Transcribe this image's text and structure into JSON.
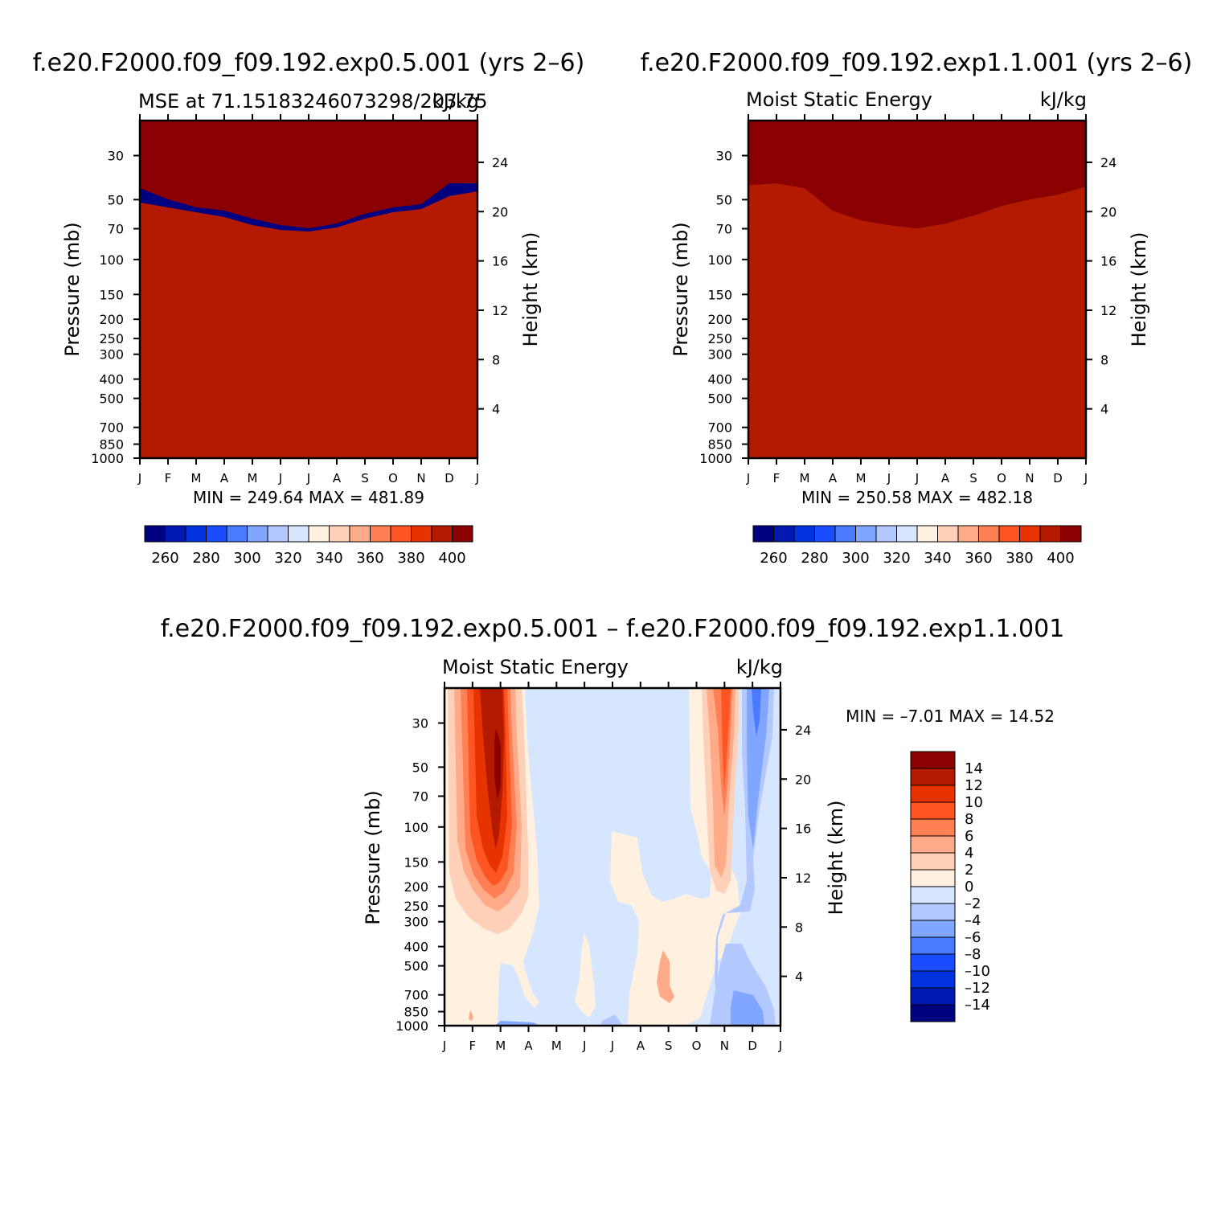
{
  "chart_data": [
    {
      "type": "heatmap",
      "title": "f.e20.F2000.f09_f09.192.exp0.5.001 (yrs 2–6)",
      "subtitle_left": "MSE at 71.15183246073298/203.75",
      "subtitle_right": "kJ/kg",
      "ylabel": "Pressure (mb)",
      "ylabel_right": "Height (km)",
      "x_ticks": [
        "J",
        "F",
        "M",
        "A",
        "M",
        "J",
        "J",
        "A",
        "S",
        "O",
        "N",
        "D",
        "J"
      ],
      "y_ticks": [
        "30",
        "50",
        "70",
        "100",
        "150",
        "200",
        "250",
        "300",
        "400",
        "500",
        "700",
        "850",
        "1000"
      ],
      "y_ticks_right": [
        "24",
        "20",
        "16",
        "12",
        "8",
        "4"
      ],
      "stats": "MIN =  249.64  MAX =  481.89",
      "min": 249.64,
      "max": 481.89,
      "colorbar_labels": [
        "260",
        "280",
        "300",
        "320",
        "340",
        "360",
        "380",
        "400"
      ],
      "colorbar_colors": [
        "#00037f",
        "#0019b3",
        "#0033e0",
        "#1a4dff",
        "#4a7aff",
        "#80a6ff",
        "#b3c8ff",
        "#d6e6ff",
        "#fff0e0",
        "#ffd0b8",
        "#ffaa88",
        "#ff8055",
        "#ff5522",
        "#e63300",
        "#b31a00",
        "#8b0000"
      ],
      "contour_levels": [
        260,
        270,
        280,
        290,
        300,
        310,
        320,
        330,
        340,
        350,
        360,
        370,
        380,
        390,
        400
      ]
    },
    {
      "type": "heatmap",
      "title": "f.e20.F2000.f09_f09.192.exp1.1.001 (yrs 2–6)",
      "subtitle_left": "Moist Static Energy",
      "subtitle_right": "kJ/kg",
      "ylabel": "Pressure (mb)",
      "ylabel_right": "Height (km)",
      "x_ticks": [
        "J",
        "F",
        "M",
        "A",
        "M",
        "J",
        "J",
        "A",
        "S",
        "O",
        "N",
        "D",
        "J"
      ],
      "y_ticks": [
        "30",
        "50",
        "70",
        "100",
        "150",
        "200",
        "250",
        "300",
        "400",
        "500",
        "700",
        "850",
        "1000"
      ],
      "y_ticks_right": [
        "24",
        "20",
        "16",
        "12",
        "8",
        "4"
      ],
      "stats": "MIN =  250.58  MAX =  482.18",
      "min": 250.58,
      "max": 482.18,
      "colorbar_labels": [
        "260",
        "280",
        "300",
        "320",
        "340",
        "360",
        "380",
        "400"
      ],
      "colorbar_colors": [
        "#00037f",
        "#0019b3",
        "#0033e0",
        "#1a4dff",
        "#4a7aff",
        "#80a6ff",
        "#b3c8ff",
        "#d6e6ff",
        "#fff0e0",
        "#ffd0b8",
        "#ffaa88",
        "#ff8055",
        "#ff5522",
        "#e63300",
        "#b31a00",
        "#8b0000"
      ],
      "contour_levels": [
        260,
        270,
        280,
        290,
        300,
        310,
        320,
        330,
        340,
        350,
        360,
        370,
        380,
        390,
        400
      ]
    },
    {
      "type": "heatmap",
      "title": "f.e20.F2000.f09_f09.192.exp0.5.001 – f.e20.F2000.f09_f09.192.exp1.1.001",
      "subtitle_left": "Moist Static Energy",
      "subtitle_right": "kJ/kg",
      "ylabel": "Pressure (mb)",
      "ylabel_right": "Height (km)",
      "x_ticks": [
        "J",
        "F",
        "M",
        "A",
        "M",
        "J",
        "J",
        "A",
        "S",
        "O",
        "N",
        "D",
        "J"
      ],
      "y_ticks": [
        "30",
        "50",
        "70",
        "100",
        "150",
        "200",
        "250",
        "300",
        "400",
        "500",
        "700",
        "850",
        "1000"
      ],
      "y_ticks_right": [
        "24",
        "20",
        "16",
        "12",
        "8",
        "4"
      ],
      "stats": "MIN =   –7.01  MAX =   14.52",
      "min": -7.01,
      "max": 14.52,
      "colorbar_labels": [
        "14",
        "12",
        "10",
        "8",
        "6",
        "4",
        "2",
        "0",
        "–2",
        "–4",
        "–6",
        "–8",
        "–10",
        "–12",
        "–14"
      ],
      "colorbar_colors": [
        "#8b0000",
        "#b31a00",
        "#e63300",
        "#ff5522",
        "#ff8055",
        "#ffaa88",
        "#ffd0b8",
        "#fff0e0",
        "#d6e6ff",
        "#b3c8ff",
        "#80a6ff",
        "#4a7aff",
        "#1a4dff",
        "#0033e0",
        "#0019b3",
        "#00037f"
      ],
      "contour_levels": [
        -14,
        -12,
        -10,
        -8,
        -6,
        -4,
        -2,
        0,
        2,
        4,
        6,
        8,
        10,
        12,
        14
      ]
    }
  ]
}
